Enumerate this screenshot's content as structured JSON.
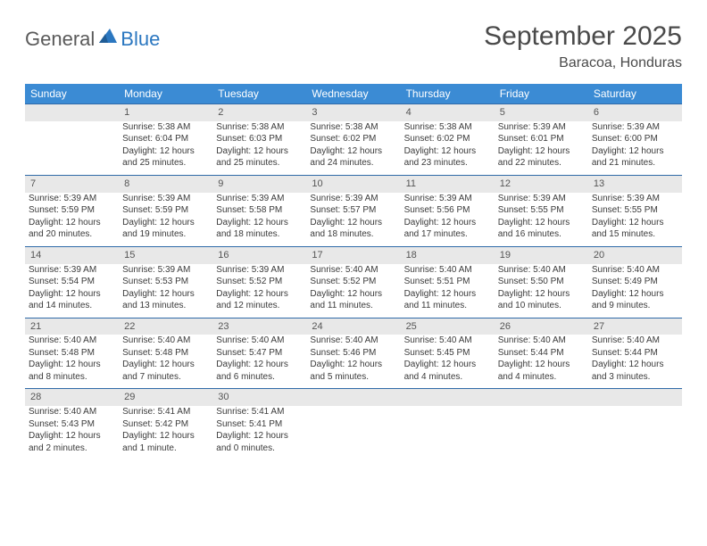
{
  "brand": {
    "text1": "General",
    "text2": "Blue"
  },
  "title": "September 2025",
  "location": "Baracoa, Honduras",
  "colors": {
    "header_bg": "#3b8bd4",
    "header_text": "#ffffff",
    "daynum_bg": "#e8e8e8",
    "row_border": "#2f6aa8",
    "body_text": "#3a3a3a",
    "logo_blue": "#2b77c0",
    "logo_gray": "#5a5a5a"
  },
  "weekdays": [
    "Sunday",
    "Monday",
    "Tuesday",
    "Wednesday",
    "Thursday",
    "Friday",
    "Saturday"
  ],
  "weeks": [
    [
      null,
      {
        "n": "1",
        "sr": "Sunrise: 5:38 AM",
        "ss": "Sunset: 6:04 PM",
        "dl": "Daylight: 12 hours and 25 minutes."
      },
      {
        "n": "2",
        "sr": "Sunrise: 5:38 AM",
        "ss": "Sunset: 6:03 PM",
        "dl": "Daylight: 12 hours and 25 minutes."
      },
      {
        "n": "3",
        "sr": "Sunrise: 5:38 AM",
        "ss": "Sunset: 6:02 PM",
        "dl": "Daylight: 12 hours and 24 minutes."
      },
      {
        "n": "4",
        "sr": "Sunrise: 5:38 AM",
        "ss": "Sunset: 6:02 PM",
        "dl": "Daylight: 12 hours and 23 minutes."
      },
      {
        "n": "5",
        "sr": "Sunrise: 5:39 AM",
        "ss": "Sunset: 6:01 PM",
        "dl": "Daylight: 12 hours and 22 minutes."
      },
      {
        "n": "6",
        "sr": "Sunrise: 5:39 AM",
        "ss": "Sunset: 6:00 PM",
        "dl": "Daylight: 12 hours and 21 minutes."
      }
    ],
    [
      {
        "n": "7",
        "sr": "Sunrise: 5:39 AM",
        "ss": "Sunset: 5:59 PM",
        "dl": "Daylight: 12 hours and 20 minutes."
      },
      {
        "n": "8",
        "sr": "Sunrise: 5:39 AM",
        "ss": "Sunset: 5:59 PM",
        "dl": "Daylight: 12 hours and 19 minutes."
      },
      {
        "n": "9",
        "sr": "Sunrise: 5:39 AM",
        "ss": "Sunset: 5:58 PM",
        "dl": "Daylight: 12 hours and 18 minutes."
      },
      {
        "n": "10",
        "sr": "Sunrise: 5:39 AM",
        "ss": "Sunset: 5:57 PM",
        "dl": "Daylight: 12 hours and 18 minutes."
      },
      {
        "n": "11",
        "sr": "Sunrise: 5:39 AM",
        "ss": "Sunset: 5:56 PM",
        "dl": "Daylight: 12 hours and 17 minutes."
      },
      {
        "n": "12",
        "sr": "Sunrise: 5:39 AM",
        "ss": "Sunset: 5:55 PM",
        "dl": "Daylight: 12 hours and 16 minutes."
      },
      {
        "n": "13",
        "sr": "Sunrise: 5:39 AM",
        "ss": "Sunset: 5:55 PM",
        "dl": "Daylight: 12 hours and 15 minutes."
      }
    ],
    [
      {
        "n": "14",
        "sr": "Sunrise: 5:39 AM",
        "ss": "Sunset: 5:54 PM",
        "dl": "Daylight: 12 hours and 14 minutes."
      },
      {
        "n": "15",
        "sr": "Sunrise: 5:39 AM",
        "ss": "Sunset: 5:53 PM",
        "dl": "Daylight: 12 hours and 13 minutes."
      },
      {
        "n": "16",
        "sr": "Sunrise: 5:39 AM",
        "ss": "Sunset: 5:52 PM",
        "dl": "Daylight: 12 hours and 12 minutes."
      },
      {
        "n": "17",
        "sr": "Sunrise: 5:40 AM",
        "ss": "Sunset: 5:52 PM",
        "dl": "Daylight: 12 hours and 11 minutes."
      },
      {
        "n": "18",
        "sr": "Sunrise: 5:40 AM",
        "ss": "Sunset: 5:51 PM",
        "dl": "Daylight: 12 hours and 11 minutes."
      },
      {
        "n": "19",
        "sr": "Sunrise: 5:40 AM",
        "ss": "Sunset: 5:50 PM",
        "dl": "Daylight: 12 hours and 10 minutes."
      },
      {
        "n": "20",
        "sr": "Sunrise: 5:40 AM",
        "ss": "Sunset: 5:49 PM",
        "dl": "Daylight: 12 hours and 9 minutes."
      }
    ],
    [
      {
        "n": "21",
        "sr": "Sunrise: 5:40 AM",
        "ss": "Sunset: 5:48 PM",
        "dl": "Daylight: 12 hours and 8 minutes."
      },
      {
        "n": "22",
        "sr": "Sunrise: 5:40 AM",
        "ss": "Sunset: 5:48 PM",
        "dl": "Daylight: 12 hours and 7 minutes."
      },
      {
        "n": "23",
        "sr": "Sunrise: 5:40 AM",
        "ss": "Sunset: 5:47 PM",
        "dl": "Daylight: 12 hours and 6 minutes."
      },
      {
        "n": "24",
        "sr": "Sunrise: 5:40 AM",
        "ss": "Sunset: 5:46 PM",
        "dl": "Daylight: 12 hours and 5 minutes."
      },
      {
        "n": "25",
        "sr": "Sunrise: 5:40 AM",
        "ss": "Sunset: 5:45 PM",
        "dl": "Daylight: 12 hours and 4 minutes."
      },
      {
        "n": "26",
        "sr": "Sunrise: 5:40 AM",
        "ss": "Sunset: 5:44 PM",
        "dl": "Daylight: 12 hours and 4 minutes."
      },
      {
        "n": "27",
        "sr": "Sunrise: 5:40 AM",
        "ss": "Sunset: 5:44 PM",
        "dl": "Daylight: 12 hours and 3 minutes."
      }
    ],
    [
      {
        "n": "28",
        "sr": "Sunrise: 5:40 AM",
        "ss": "Sunset: 5:43 PM",
        "dl": "Daylight: 12 hours and 2 minutes."
      },
      {
        "n": "29",
        "sr": "Sunrise: 5:41 AM",
        "ss": "Sunset: 5:42 PM",
        "dl": "Daylight: 12 hours and 1 minute."
      },
      {
        "n": "30",
        "sr": "Sunrise: 5:41 AM",
        "ss": "Sunset: 5:41 PM",
        "dl": "Daylight: 12 hours and 0 minutes."
      },
      null,
      null,
      null,
      null
    ]
  ]
}
